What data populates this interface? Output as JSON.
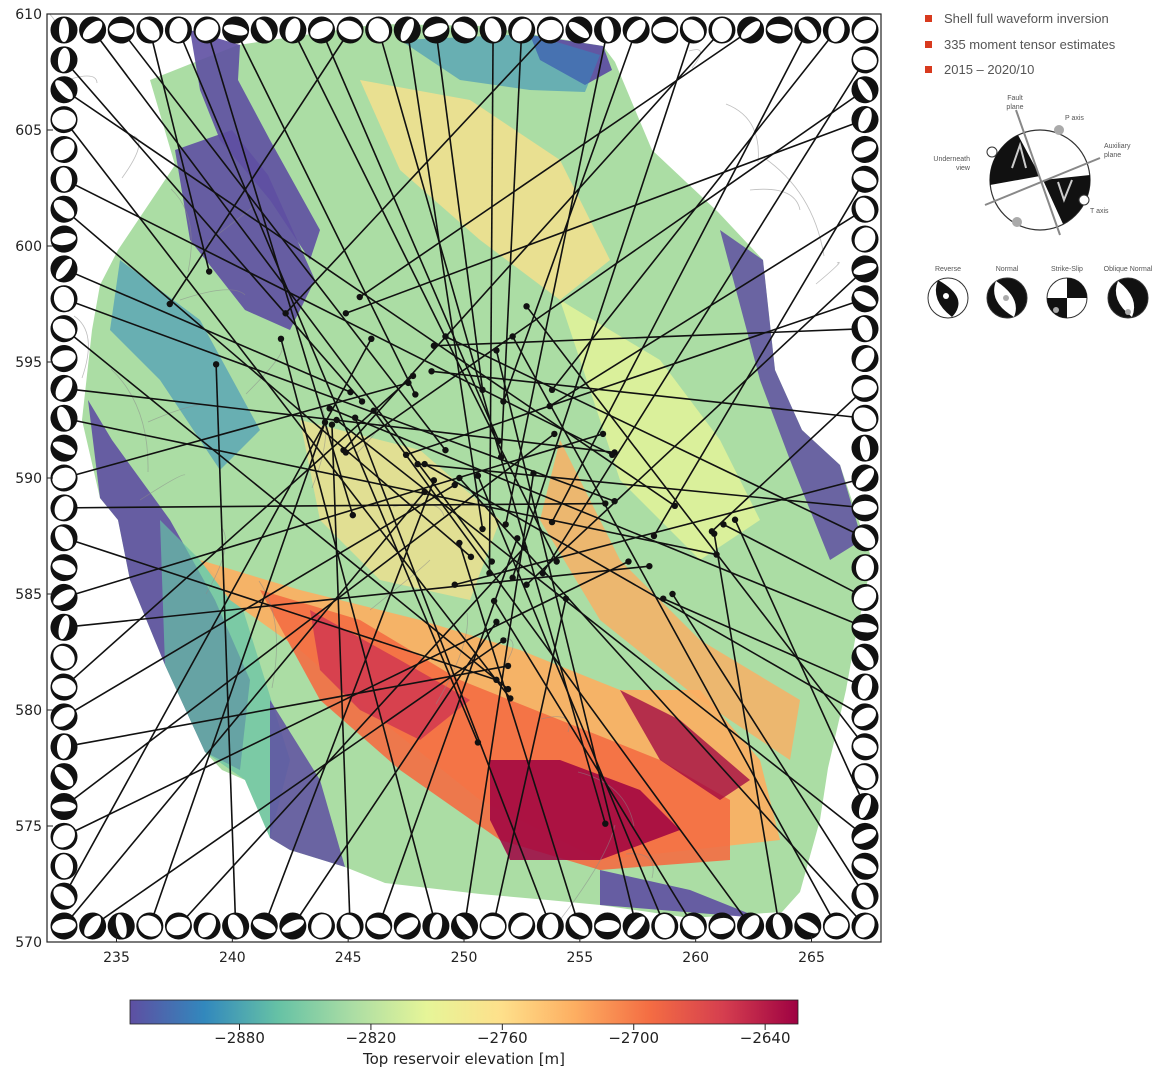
{
  "legend": {
    "marker_color": "#d83a1e",
    "items": [
      "Shell full waveform inversion",
      "335 moment tensor estimates",
      "2015 – 2020/10"
    ]
  },
  "diagram": {
    "fault_plane": [
      "Fault",
      "plane"
    ],
    "p_axis": "P axis",
    "auxiliary_plane": [
      "Auxiliary",
      "plane"
    ],
    "underneath_view": [
      "Underneath",
      "view"
    ],
    "t_axis": "T axis"
  },
  "mechanisms": [
    "Reverse",
    "Normal",
    "Strike-Slip",
    "Oblique Normal"
  ],
  "chart_data": {
    "type": "heatmap",
    "xlim": [
      232,
      268
    ],
    "ylim": [
      570,
      610
    ],
    "x_ticks": [
      235,
      240,
      245,
      250,
      255,
      260,
      265
    ],
    "y_ticks": [
      570,
      575,
      580,
      585,
      590,
      595,
      600,
      605,
      610
    ],
    "colorbar": {
      "label": "Top reservoir elevation   [m]",
      "range": [
        -2930,
        -2625
      ],
      "ticks": [
        -2880,
        -2820,
        -2760,
        -2700,
        -2640
      ],
      "colormap": [
        "#5e4fa2",
        "#3288bd",
        "#66c2a5",
        "#abdda4",
        "#e6f598",
        "#fee08b",
        "#fdae61",
        "#f46d43",
        "#d53e4f",
        "#9e0142"
      ]
    },
    "events": [
      [
        239.0,
        598.9
      ],
      [
        237.3,
        597.5
      ],
      [
        242.3,
        597.1
      ],
      [
        245.5,
        597.8
      ],
      [
        244.9,
        597.1
      ],
      [
        248.7,
        595.7
      ],
      [
        249.2,
        596.1
      ],
      [
        252.7,
        597.4
      ],
      [
        252.1,
        596.1
      ],
      [
        251.4,
        595.5
      ],
      [
        242.1,
        596.0
      ],
      [
        239.3,
        594.9
      ],
      [
        246.0,
        596.0
      ],
      [
        247.8,
        594.4
      ],
      [
        247.6,
        594.1
      ],
      [
        245.1,
        593.7
      ],
      [
        245.6,
        593.3
      ],
      [
        247.9,
        593.6
      ],
      [
        250.8,
        593.8
      ],
      [
        251.7,
        593.3
      ],
      [
        253.8,
        593.8
      ],
      [
        253.7,
        593.1
      ],
      [
        248.6,
        594.6
      ],
      [
        244.2,
        593.0
      ],
      [
        244.5,
        592.5
      ],
      [
        246.1,
        592.9
      ],
      [
        245.3,
        592.6
      ],
      [
        244.3,
        592.3
      ],
      [
        244.0,
        592.4
      ],
      [
        253.9,
        591.9
      ],
      [
        256.0,
        591.9
      ],
      [
        256.5,
        591.1
      ],
      [
        256.4,
        591.0
      ],
      [
        249.2,
        591.2
      ],
      [
        251.5,
        591.6
      ],
      [
        251.6,
        590.9
      ],
      [
        244.8,
        591.2
      ],
      [
        244.9,
        591.1
      ],
      [
        247.5,
        591.0
      ],
      [
        248.0,
        590.6
      ],
      [
        248.3,
        590.6
      ],
      [
        249.8,
        590.0
      ],
      [
        250.6,
        590.1
      ],
      [
        253.0,
        590.2
      ],
      [
        248.7,
        589.9
      ],
      [
        248.3,
        589.4
      ],
      [
        249.6,
        589.7
      ],
      [
        256.1,
        588.9
      ],
      [
        256.5,
        589.0
      ],
      [
        259.1,
        588.8
      ],
      [
        245.2,
        588.4
      ],
      [
        250.8,
        587.8
      ],
      [
        251.8,
        588.0
      ],
      [
        253.8,
        588.1
      ],
      [
        258.2,
        587.5
      ],
      [
        260.7,
        587.7
      ],
      [
        261.2,
        588.0
      ],
      [
        261.7,
        588.2
      ],
      [
        260.8,
        587.6
      ],
      [
        249.8,
        587.2
      ],
      [
        252.3,
        587.4
      ],
      [
        252.6,
        587.0
      ],
      [
        257.1,
        586.4
      ],
      [
        258.0,
        586.2
      ],
      [
        260.9,
        586.7
      ],
      [
        250.3,
        586.6
      ],
      [
        251.2,
        586.4
      ],
      [
        254.0,
        586.4
      ],
      [
        251.1,
        585.9
      ],
      [
        252.1,
        585.7
      ],
      [
        253.4,
        585.9
      ],
      [
        252.7,
        585.4
      ],
      [
        249.6,
        585.4
      ],
      [
        258.6,
        584.8
      ],
      [
        259.0,
        585.0
      ],
      [
        251.3,
        584.7
      ],
      [
        254.4,
        584.8
      ],
      [
        251.4,
        583.8
      ],
      [
        251.7,
        583.0
      ],
      [
        251.9,
        581.9
      ],
      [
        251.4,
        581.3
      ],
      [
        251.9,
        580.9
      ],
      [
        252.0,
        580.5
      ],
      [
        250.6,
        578.6
      ],
      [
        256.1,
        575.1
      ]
    ]
  }
}
